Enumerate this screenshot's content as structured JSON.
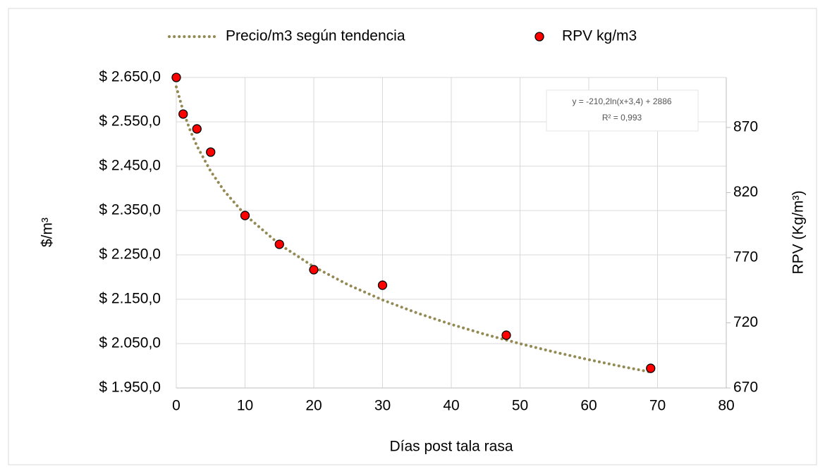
{
  "chart_data": {
    "type": "scatter",
    "xlabel": "Días post tala rasa",
    "ylabel": "$/m³",
    "y2label": "RPV (Kg/m³)",
    "annotation": [
      "y = -210,2ln(x+3,4) + 2886",
      "R² = 0,993"
    ],
    "xlim": [
      0,
      80
    ],
    "xticks": [
      0,
      10,
      20,
      30,
      40,
      50,
      60,
      70,
      80
    ],
    "ylim": [
      1950,
      2650
    ],
    "yticks": [
      {
        "value": 1950,
        "label": "$ 1.950,0"
      },
      {
        "value": 2050,
        "label": "$ 2.050,0"
      },
      {
        "value": 2150,
        "label": "$ 2.150,0"
      },
      {
        "value": 2250,
        "label": "$ 2.250,0"
      },
      {
        "value": 2350,
        "label": "$ 2.350,0"
      },
      {
        "value": 2450,
        "label": "$ 2.450,0"
      },
      {
        "value": 2550,
        "label": "$ 2.550,0"
      },
      {
        "value": 2650,
        "label": "$ 2.650,0"
      }
    ],
    "y2lim": [
      670,
      908.4
    ],
    "y2ticks": [
      670,
      720,
      770,
      820,
      870
    ],
    "grid": true,
    "legend": "top",
    "series": [
      {
        "name": "Precio/m3 según tendencia",
        "color": "#948a54",
        "style": "dotted-line",
        "axis": "y",
        "x": [
          0,
          1,
          2,
          3,
          5,
          7,
          10,
          15,
          20,
          25,
          30,
          35,
          40,
          45,
          50,
          55,
          60,
          65,
          69
        ],
        "values": [
          2628.8,
          2574.6,
          2531.5,
          2495.8,
          2438.6,
          2393.7,
          2340.5,
          2273.8,
          2223.3,
          2182.6,
          2148.5,
          2119.2,
          2093.4,
          2070.5,
          2049.9,
          2031.0,
          2013.8,
          1997.8,
          1985.9
        ]
      },
      {
        "name": "RPV kg/m3",
        "color": "#ff0000",
        "style": "markers",
        "axis": "y2",
        "x": [
          0,
          1,
          3,
          5,
          10,
          15,
          20,
          30,
          48,
          69
        ],
        "values": [
          908.4,
          880.3,
          868.9,
          851.1,
          802.4,
          780.3,
          760.8,
          748.9,
          710.5,
          685.1
        ]
      }
    ]
  }
}
